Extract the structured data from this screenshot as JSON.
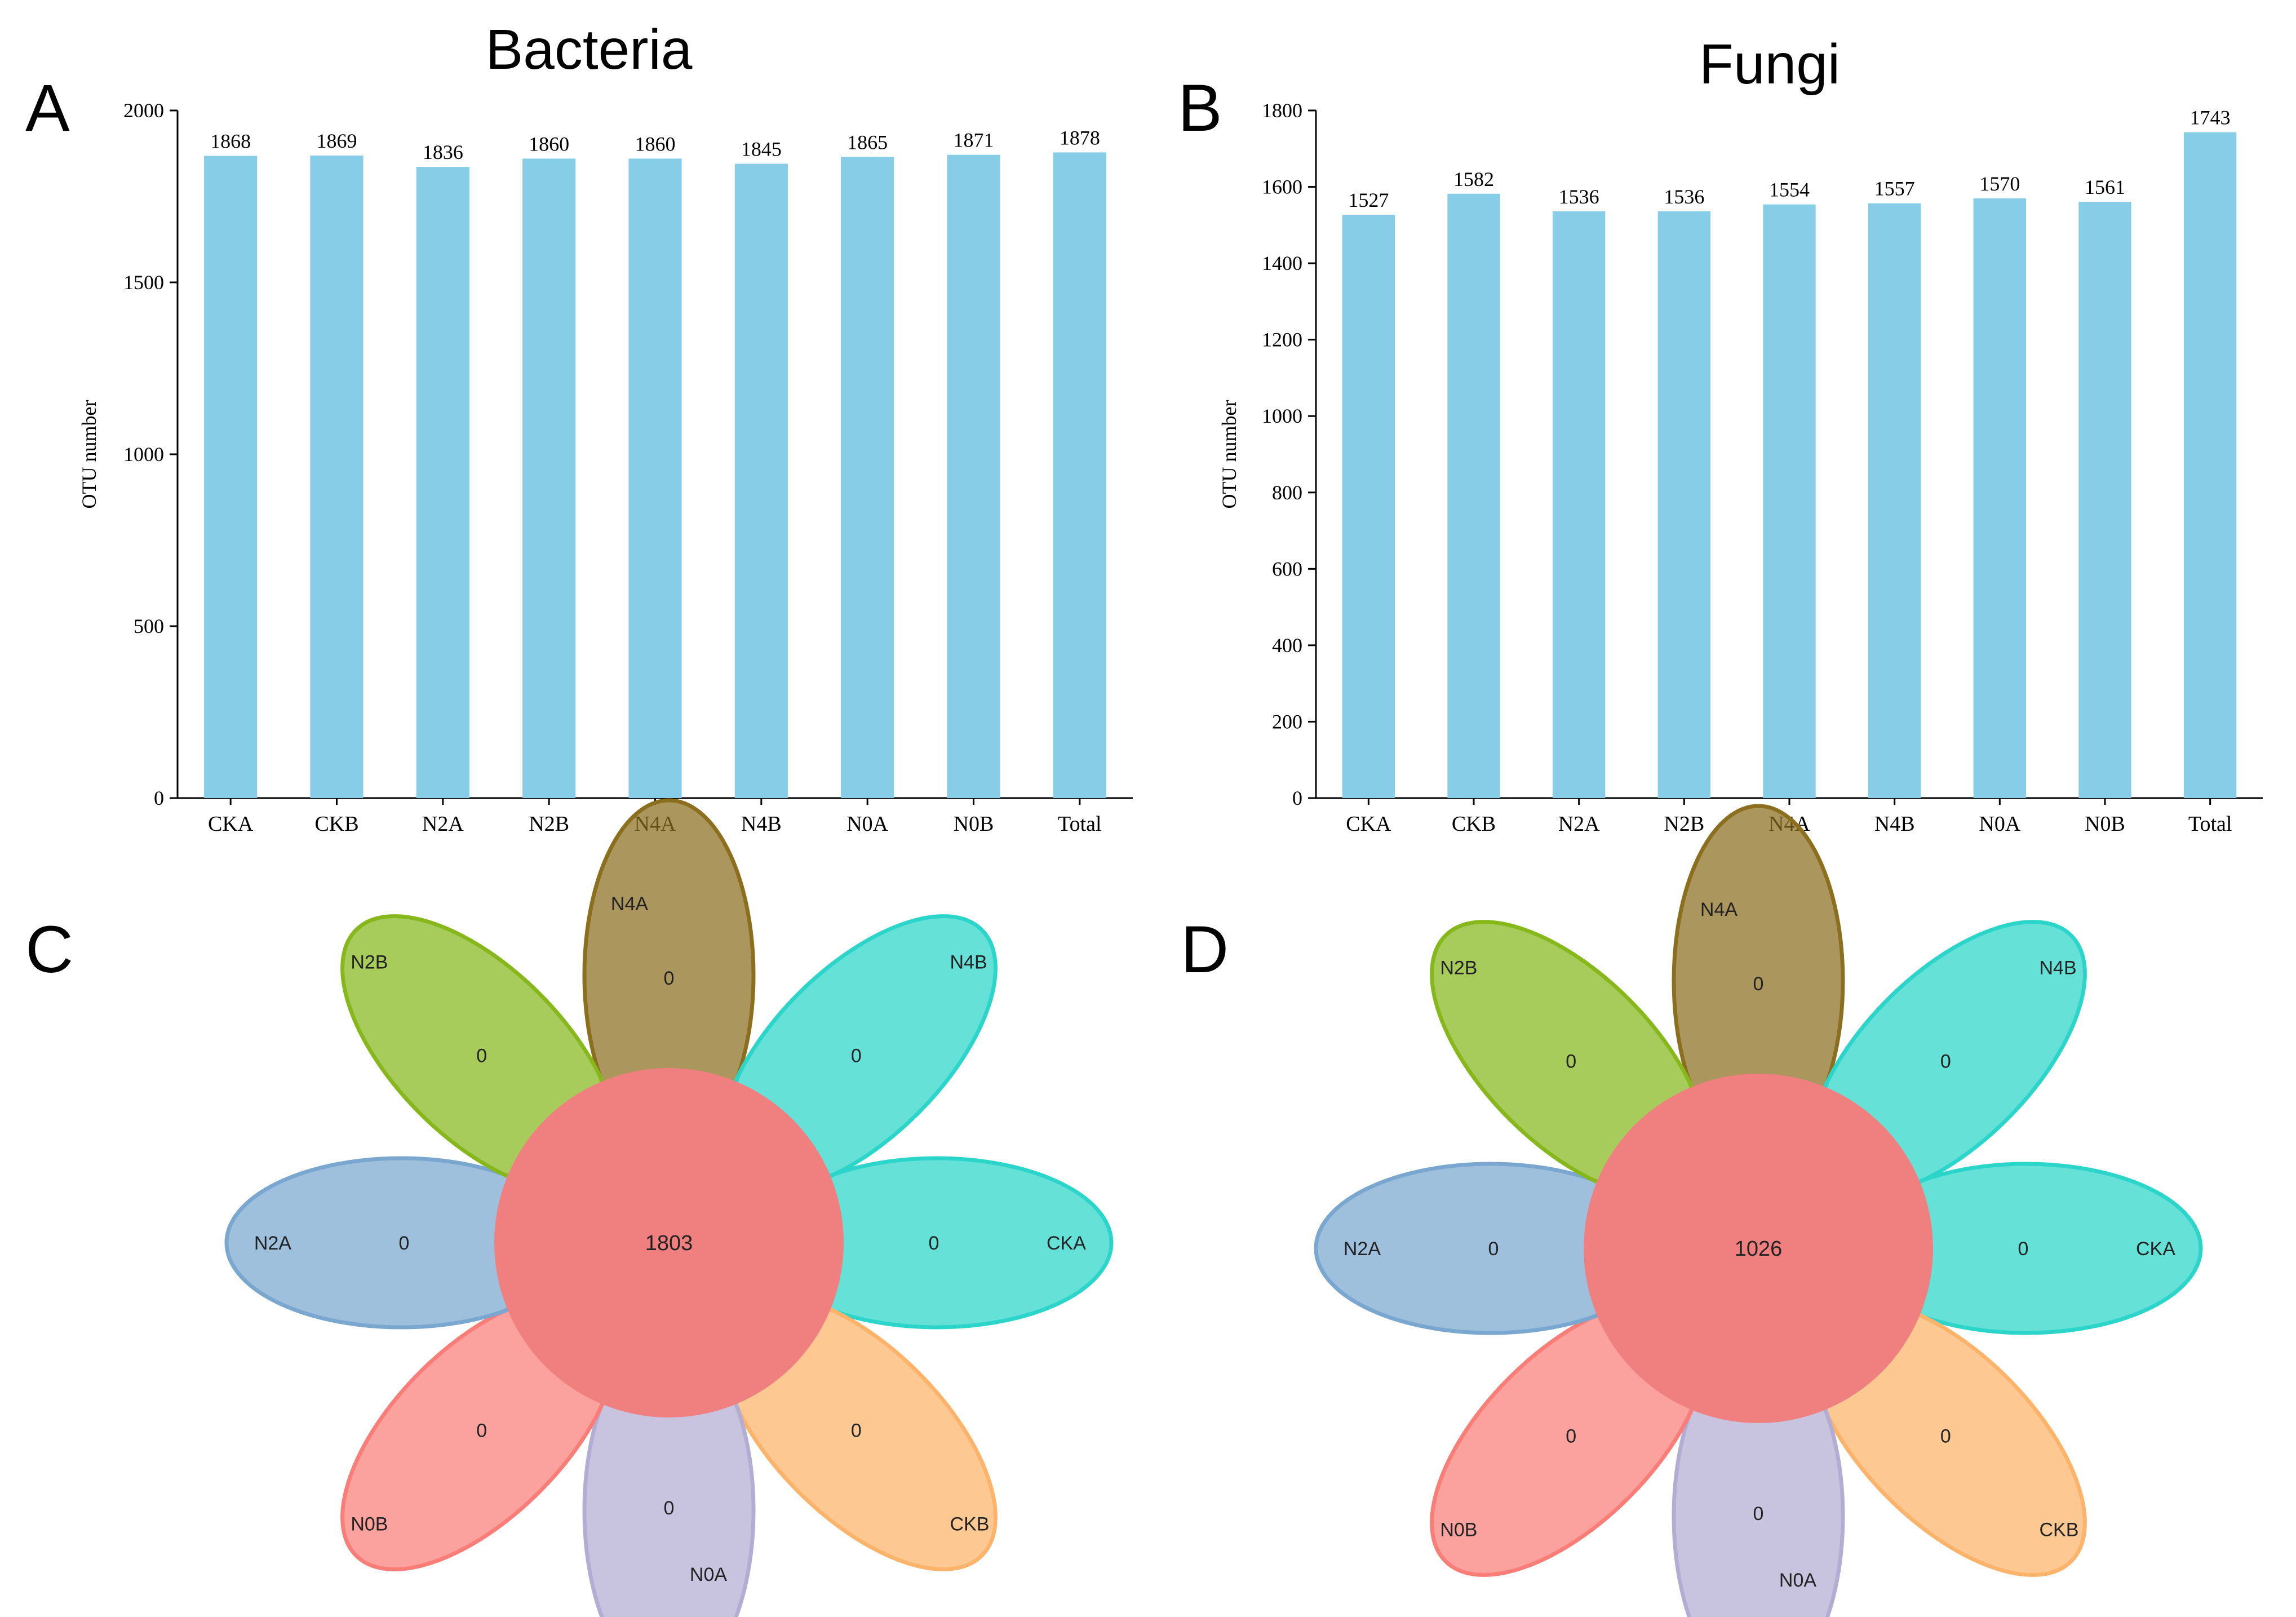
{
  "colors": {
    "bar": "#87CDE8",
    "axis": "#000000",
    "venn_core": "#F08080",
    "petal_n4a": "#8B6F1E",
    "petal_n4b": "#2BD5C9",
    "petal_cka": "#2BD5C9",
    "petal_ckb": "#FDB36A",
    "petal_n0a": "#B3ADD4",
    "petal_n0b": "#FA7D78",
    "petal_n2a": "#79A7D0",
    "petal_n2b": "#86B81C"
  },
  "panels": {
    "A": "A",
    "B": "B",
    "C": "C",
    "D": "D"
  },
  "chart_data": [
    {
      "id": "A",
      "type": "bar",
      "title": "Bacteria",
      "xlabel": "",
      "ylabel": "OTU number",
      "categories": [
        "CKA",
        "CKB",
        "N2A",
        "N2B",
        "N4A",
        "N4B",
        "N0A",
        "N0B",
        "Total"
      ],
      "values": [
        1868,
        1869,
        1836,
        1860,
        1860,
        1845,
        1865,
        1871,
        1878
      ],
      "ylim": [
        0,
        2000
      ],
      "yticks": [
        0,
        500,
        1000,
        1500,
        2000
      ],
      "ytick_labels": [
        "0",
        "500",
        "1000",
        "1500",
        "2000"
      ],
      "grid": false,
      "legend": "none"
    },
    {
      "id": "B",
      "type": "bar",
      "title": "Fungi",
      "xlabel": "",
      "ylabel": "OTU number",
      "categories": [
        "CKA",
        "CKB",
        "N2A",
        "N2B",
        "N4A",
        "N4B",
        "N0A",
        "N0B",
        "Total"
      ],
      "values": [
        1527,
        1582,
        1536,
        1536,
        1554,
        1557,
        1570,
        1561,
        1743
      ],
      "ylim": [
        0,
        1800
      ],
      "yticks": [
        0,
        200,
        400,
        600,
        800,
        1000,
        1200,
        1400,
        1600,
        1800
      ],
      "ytick_labels": [
        "0",
        "200",
        "400",
        "600",
        "800",
        "1000",
        "1200",
        "1400",
        "1600",
        "1800"
      ],
      "grid": false,
      "legend": "none"
    },
    {
      "id": "C",
      "type": "venn",
      "core_label": "1803",
      "petals": [
        {
          "set": "N4A",
          "label": "N4A",
          "value": "0"
        },
        {
          "set": "N4B",
          "label": "N4B",
          "value": "0"
        },
        {
          "set": "CKA",
          "label": "CKA",
          "value": "0"
        },
        {
          "set": "CKB",
          "label": "CKB",
          "value": "0"
        },
        {
          "set": "N0A",
          "label": "N0A",
          "value": "0"
        },
        {
          "set": "N0B",
          "label": "N0B",
          "value": "0"
        },
        {
          "set": "N2A",
          "label": "N2A",
          "value": "0"
        },
        {
          "set": "N2B",
          "label": "N2B",
          "value": "0"
        }
      ]
    },
    {
      "id": "D",
      "type": "venn",
      "core_label": "1026",
      "petals": [
        {
          "set": "N4A",
          "label": "N4A",
          "value": "0"
        },
        {
          "set": "N4B",
          "label": "N4B",
          "value": "0"
        },
        {
          "set": "CKA",
          "label": "CKA",
          "value": "0"
        },
        {
          "set": "CKB",
          "label": "CKB",
          "value": "0"
        },
        {
          "set": "N0A",
          "label": "N0A",
          "value": "0"
        },
        {
          "set": "N0B",
          "label": "N0B",
          "value": "0"
        },
        {
          "set": "N2A",
          "label": "N2A",
          "value": "0"
        },
        {
          "set": "N2B",
          "label": "N2B",
          "value": "0"
        }
      ]
    }
  ]
}
